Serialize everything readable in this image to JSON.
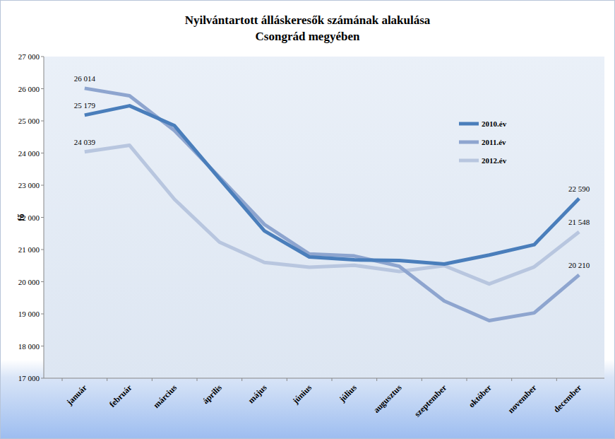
{
  "chart_data": {
    "type": "line",
    "title": "Nyilvántartott álláskeresők számának alakulása",
    "subtitle": "Csongrád megyében",
    "y_label": "fő",
    "categories": [
      "január",
      "február",
      "március",
      "április",
      "május",
      "június",
      "július",
      "augusztus",
      "szeptember",
      "október",
      "november",
      "december"
    ],
    "series": [
      {
        "name": "2010.év",
        "color": "#4a7ebb",
        "values": [
          25179,
          25470,
          24850,
          23200,
          21580,
          20770,
          20680,
          20660,
          20550,
          20830,
          21150,
          22590
        ],
        "value_labels": [
          "25 179",
          null,
          null,
          null,
          null,
          null,
          null,
          null,
          null,
          null,
          null,
          "22 590"
        ]
      },
      {
        "name": "2011.év",
        "color": "#8ea5cf",
        "values": [
          26014,
          25780,
          24700,
          23250,
          21780,
          20860,
          20800,
          20480,
          19400,
          18790,
          19030,
          20210
        ],
        "value_labels": [
          "26 014",
          null,
          null,
          null,
          null,
          null,
          null,
          null,
          null,
          null,
          null,
          "20 210"
        ]
      },
      {
        "name": "2012.év",
        "color": "#b8c6df",
        "values": [
          24039,
          24240,
          22560,
          21230,
          20600,
          20450,
          20510,
          20320,
          20500,
          19930,
          20460,
          21548
        ],
        "value_labels": [
          "24 039",
          null,
          null,
          null,
          null,
          null,
          null,
          null,
          null,
          null,
          null,
          "21 548"
        ]
      }
    ],
    "ylim": [
      17000,
      27000
    ],
    "yticks": [
      {
        "value": 17000,
        "label": "17 000"
      },
      {
        "value": 18000,
        "label": "18 000"
      },
      {
        "value": 19000,
        "label": "19 000"
      },
      {
        "value": 20000,
        "label": "20 000"
      },
      {
        "value": 21000,
        "label": "21 000"
      },
      {
        "value": 22000,
        "label": "22 000"
      },
      {
        "value": 23000,
        "label": "23 000"
      },
      {
        "value": 24000,
        "label": "24 000"
      },
      {
        "value": 25000,
        "label": "25 000"
      },
      {
        "value": 26000,
        "label": "26 000"
      },
      {
        "value": 27000,
        "label": "27 000"
      }
    ],
    "grid": false,
    "legend": "upper right",
    "data_labels": true
  }
}
